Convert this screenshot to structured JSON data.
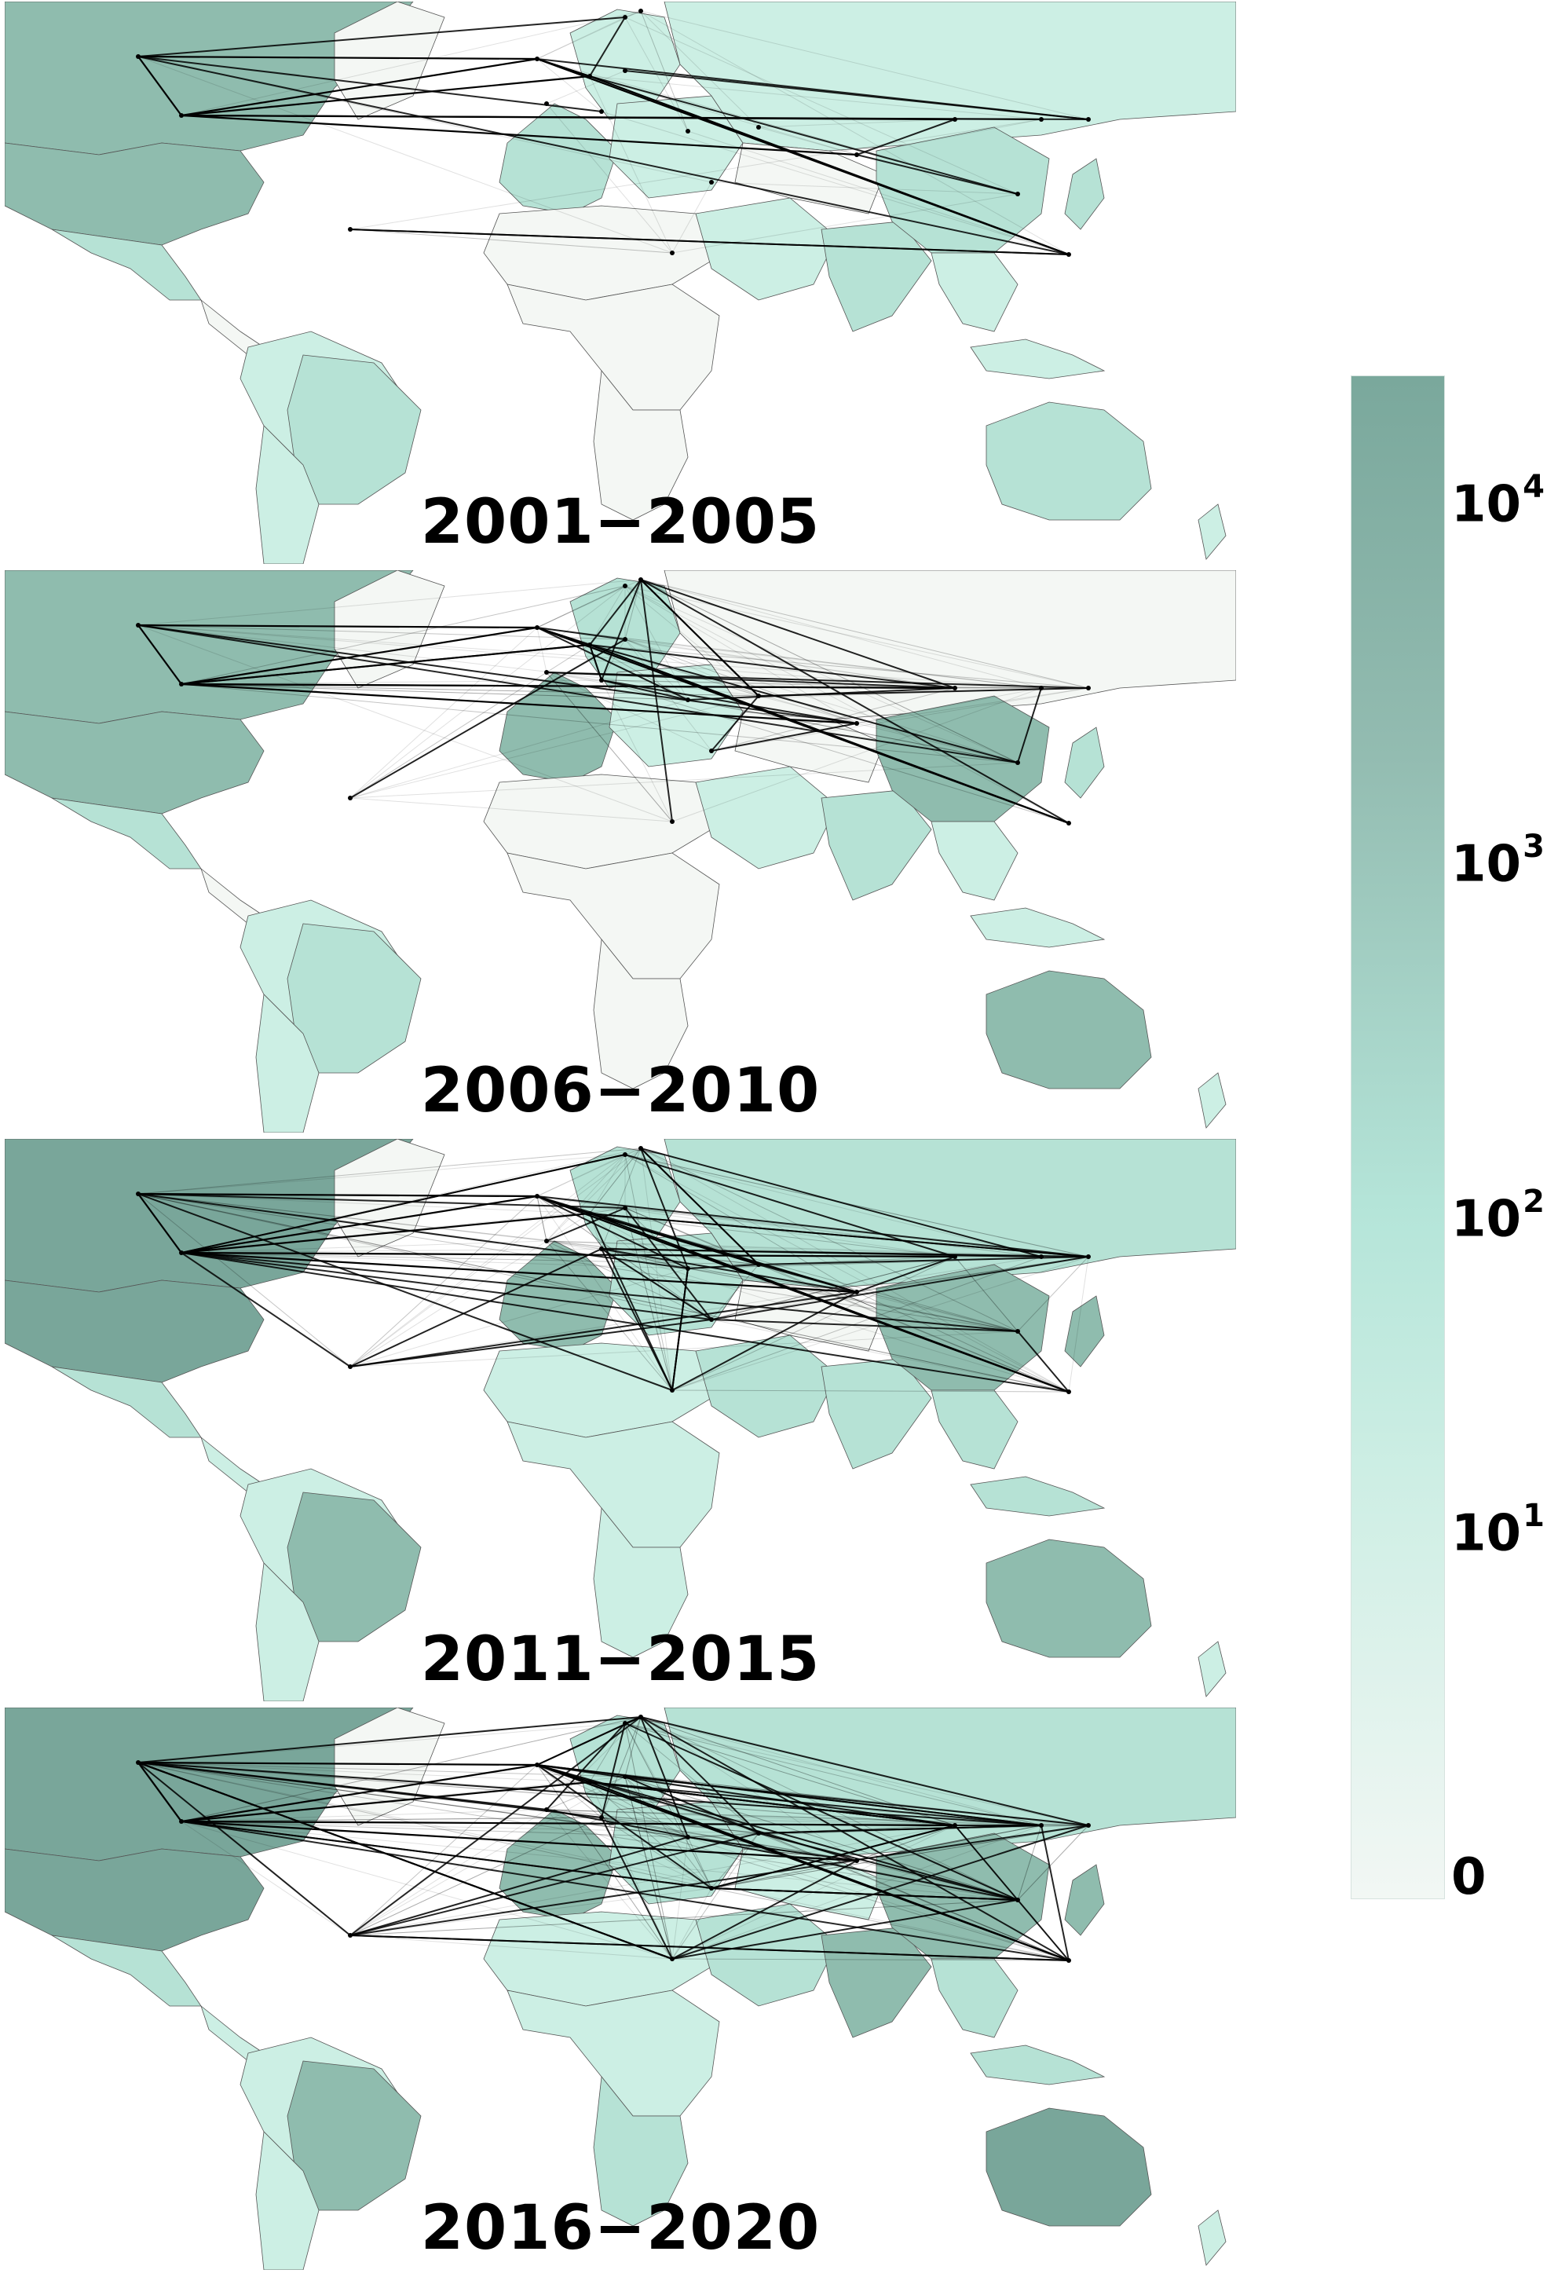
{
  "panels": [
    {
      "title": "2001−2005",
      "density": 0
    },
    {
      "title": "2006−2010",
      "density": 1
    },
    {
      "title": "2011−2015",
      "density": 2
    },
    {
      "title": "2016−2020",
      "density": 3
    }
  ],
  "colorbar": {
    "labels": [
      {
        "base": "10",
        "exp": "4"
      },
      {
        "base": "10",
        "exp": "3"
      },
      {
        "base": "10",
        "exp": "2"
      },
      {
        "base": "10",
        "exp": "1"
      },
      {
        "base": "0",
        "exp": ""
      }
    ],
    "scale": "log",
    "color_low": "#f2f7f4",
    "color_mid": "#b5e5d9",
    "color_high": "#7aa89c"
  },
  "colors": {
    "land_none": "#f4f7f4",
    "land_low": "#ccefe4",
    "land_mid": "#b6e2d5",
    "land_high": "#8fbcae",
    "land_top": "#79a69a",
    "edge": "#000000",
    "border": "#555555"
  }
}
